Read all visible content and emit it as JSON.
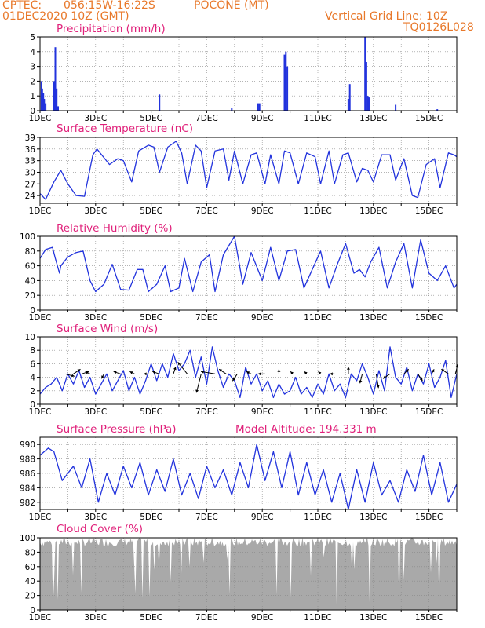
{
  "header": {
    "source": "CPTEC:",
    "location_coords": "056:15W-16:22S",
    "station": "POCONE (MT)",
    "init_time": "01DEC2020 10Z (GMT)",
    "grid_note": "Vertical Grid Line: 10Z",
    "model_code": "TQ0126L028"
  },
  "colors": {
    "header": "#e8782a",
    "title": "#e0207a",
    "series": "#2233dd",
    "cloud": "#a9a9a9",
    "grid": "#888888"
  },
  "x_axis": {
    "tick_labels": [
      "1DEC",
      "3DEC",
      "5DEC",
      "7DEC",
      "9DEC",
      "11DEC",
      "13DEC",
      "15DEC"
    ],
    "start_day": 1,
    "end_day": 16
  },
  "chart_data": [
    {
      "type": "bar",
      "title": "Precipitation (mm/h)",
      "ylim": [
        0,
        5
      ],
      "y_ticks": [
        "0",
        "1",
        "2",
        "3",
        "4",
        "5"
      ],
      "series": [
        {
          "x": [
            1.05,
            1.08,
            1.12,
            1.15,
            1.2,
            1.5,
            1.55,
            1.6,
            1.65,
            5.3,
            7.9,
            8.85,
            8.9,
            9.8,
            9.85,
            9.9,
            12.1,
            12.15,
            12.7,
            12.75,
            12.8,
            12.85,
            13.8,
            15.3
          ],
          "values": [
            2.0,
            1.5,
            1.2,
            0.8,
            0.5,
            2.0,
            4.3,
            1.5,
            0.3,
            1.1,
            0.2,
            0.5,
            0.5,
            3.8,
            4.0,
            3.0,
            0.8,
            1.8,
            5.0,
            3.3,
            1.0,
            0.9,
            0.4,
            0.1
          ]
        }
      ]
    },
    {
      "type": "line",
      "title": "Surface Temperature (nC)",
      "ylim": [
        22,
        39
      ],
      "y_ticks": [
        "24",
        "27",
        "30",
        "33",
        "36",
        "39"
      ],
      "series": [
        {
          "x": [
            1.0,
            1.2,
            1.5,
            1.75,
            2.0,
            2.3,
            2.6,
            2.9,
            3.05,
            3.5,
            3.8,
            4.0,
            4.3,
            4.55,
            4.9,
            5.1,
            5.3,
            5.6,
            5.9,
            6.1,
            6.3,
            6.6,
            6.8,
            7.0,
            7.3,
            7.6,
            7.8,
            8.0,
            8.3,
            8.6,
            8.8,
            9.1,
            9.3,
            9.6,
            9.8,
            10.0,
            10.3,
            10.6,
            10.9,
            11.1,
            11.4,
            11.6,
            11.9,
            12.1,
            12.4,
            12.6,
            12.8,
            13.0,
            13.3,
            13.6,
            13.8,
            14.1,
            14.4,
            14.6,
            14.9,
            15.2,
            15.4,
            15.7,
            15.9,
            16.0
          ],
          "values": [
            24.5,
            23.0,
            27.5,
            30.5,
            27.0,
            24.0,
            23.8,
            34.5,
            36.0,
            32.0,
            33.5,
            33.0,
            27.5,
            35.5,
            37.0,
            36.5,
            30.0,
            36.5,
            38.0,
            35.0,
            27.0,
            37.0,
            35.5,
            26.0,
            35.5,
            36.0,
            28.0,
            35.5,
            27.0,
            34.5,
            35.0,
            27.0,
            34.5,
            27.0,
            35.5,
            35.0,
            27.0,
            35.0,
            34.0,
            27.0,
            35.5,
            27.0,
            34.5,
            35.0,
            27.5,
            31.0,
            30.5,
            27.5,
            34.5,
            34.5,
            28.0,
            33.5,
            24.0,
            23.5,
            32.0,
            33.5,
            26.0,
            35.0,
            34.5,
            34.0
          ]
        }
      ]
    },
    {
      "type": "line",
      "title": "Relative Humidity (%)",
      "ylim": [
        0,
        100
      ],
      "y_ticks": [
        "0",
        "20",
        "40",
        "60",
        "80",
        "100"
      ],
      "series": [
        {
          "x": [
            1.0,
            1.2,
            1.45,
            1.55,
            1.7,
            1.75,
            2.0,
            2.3,
            2.55,
            2.8,
            3.0,
            3.3,
            3.6,
            3.9,
            4.2,
            4.5,
            4.7,
            4.9,
            5.2,
            5.5,
            5.7,
            6.0,
            6.2,
            6.5,
            6.8,
            7.1,
            7.3,
            7.6,
            8.0,
            8.3,
            8.6,
            9.0,
            9.3,
            9.6,
            9.9,
            10.2,
            10.5,
            10.8,
            11.1,
            11.4,
            11.7,
            12.0,
            12.3,
            12.5,
            12.7,
            12.9,
            13.2,
            13.5,
            13.8,
            14.1,
            14.4,
            14.7,
            15.0,
            15.3,
            15.6,
            15.9,
            16.0
          ],
          "values": [
            70.0,
            82.0,
            85.0,
            70.0,
            50.0,
            60.0,
            72.0,
            78.0,
            80.0,
            40.0,
            25.0,
            35.0,
            62.0,
            28.0,
            27.0,
            55.0,
            55.0,
            25.0,
            35.0,
            60.0,
            25.0,
            30.0,
            70.0,
            25.0,
            65.0,
            75.0,
            25.0,
            75.0,
            100.0,
            35.0,
            78.0,
            40.0,
            85.0,
            40.0,
            80.0,
            82.0,
            30.0,
            55.0,
            80.0,
            30.0,
            62.0,
            90.0,
            50.0,
            55.0,
            45.0,
            65.0,
            85.0,
            30.0,
            65.0,
            90.0,
            30.0,
            95.0,
            50.0,
            40.0,
            60.0,
            30.0,
            35.0
          ]
        }
      ]
    },
    {
      "type": "line",
      "title": "Surface Wind (m/s)",
      "ylim": [
        0,
        10
      ],
      "y_ticks": [
        "0",
        "2",
        "4",
        "6",
        "8",
        "10"
      ],
      "series": [
        {
          "x": [
            1.0,
            1.2,
            1.4,
            1.6,
            1.8,
            2.0,
            2.2,
            2.4,
            2.6,
            2.8,
            3.0,
            3.2,
            3.4,
            3.6,
            3.8,
            4.0,
            4.2,
            4.4,
            4.6,
            4.8,
            5.0,
            5.2,
            5.4,
            5.6,
            5.8,
            6.0,
            6.2,
            6.4,
            6.6,
            6.8,
            7.0,
            7.2,
            7.4,
            7.6,
            7.8,
            8.0,
            8.2,
            8.4,
            8.6,
            8.8,
            9.0,
            9.2,
            9.4,
            9.6,
            9.8,
            10.0,
            10.2,
            10.4,
            10.6,
            10.8,
            11.0,
            11.2,
            11.4,
            11.6,
            11.8,
            12.0,
            12.2,
            12.4,
            12.6,
            12.8,
            13.0,
            13.2,
            13.4,
            13.6,
            13.8,
            14.0,
            14.2,
            14.4,
            14.6,
            14.8,
            15.0,
            15.2,
            15.4,
            15.6,
            15.8,
            16.0
          ],
          "values": [
            1.5,
            2.5,
            3.0,
            4.0,
            2.0,
            4.5,
            3.0,
            5.0,
            2.5,
            4.0,
            1.5,
            3.0,
            4.5,
            2.0,
            3.5,
            5.0,
            2.0,
            4.0,
            1.5,
            3.5,
            6.0,
            3.5,
            6.0,
            4.0,
            7.5,
            5.0,
            6.0,
            8.0,
            4.0,
            7.0,
            3.0,
            8.5,
            5.0,
            2.5,
            4.5,
            3.5,
            1.0,
            5.5,
            3.0,
            4.5,
            2.0,
            3.5,
            1.0,
            3.0,
            1.5,
            2.0,
            4.0,
            1.5,
            2.5,
            1.0,
            3.0,
            1.5,
            4.5,
            2.0,
            3.0,
            1.0,
            4.5,
            3.5,
            6.0,
            4.0,
            1.5,
            5.0,
            2.0,
            8.5,
            4.0,
            3.0,
            5.5,
            2.0,
            4.5,
            3.0,
            6.0,
            2.5,
            4.0,
            6.5,
            1.0,
            4.5
          ]
        }
      ],
      "arrows": [
        {
          "x": 1.9,
          "u": 0.4,
          "v": -0.1
        },
        {
          "x": 2.2,
          "u": 0.3,
          "v": 0.2
        },
        {
          "x": 2.5,
          "u": 0.3,
          "v": 0.1
        },
        {
          "x": 2.8,
          "u": -0.2,
          "v": 0.1
        },
        {
          "x": 3.3,
          "u": -0.1,
          "v": -0.2
        },
        {
          "x": 3.9,
          "u": -0.3,
          "v": 0.1
        },
        {
          "x": 4.4,
          "u": -0.2,
          "v": 0.1
        },
        {
          "x": 4.9,
          "u": -0.2,
          "v": 0.0
        },
        {
          "x": 5.3,
          "u": -0.3,
          "v": 0.1
        },
        {
          "x": 5.8,
          "u": 0.1,
          "v": 0.3
        },
        {
          "x": 6.3,
          "u": -0.4,
          "v": 0.5
        },
        {
          "x": 6.8,
          "u": -0.2,
          "v": -0.8
        },
        {
          "x": 7.3,
          "u": -0.6,
          "v": 0.1
        },
        {
          "x": 7.7,
          "u": -0.3,
          "v": 0.2
        },
        {
          "x": 8.1,
          "u": -0.2,
          "v": -0.3
        },
        {
          "x": 8.6,
          "u": -0.2,
          "v": 0.1
        },
        {
          "x": 9.1,
          "u": -0.3,
          "v": 0.0
        },
        {
          "x": 9.6,
          "u": 0.0,
          "v": 0.2
        },
        {
          "x": 10.1,
          "u": -0.1,
          "v": 0.1
        },
        {
          "x": 10.6,
          "u": -0.1,
          "v": 0.1
        },
        {
          "x": 11.1,
          "u": -0.1,
          "v": 0.1
        },
        {
          "x": 11.6,
          "u": -0.2,
          "v": 0.0
        },
        {
          "x": 12.1,
          "u": 0.0,
          "v": 0.3
        },
        {
          "x": 12.6,
          "u": -0.1,
          "v": -0.4
        },
        {
          "x": 13.1,
          "u": 0.1,
          "v": -0.6
        },
        {
          "x": 13.6,
          "u": -0.3,
          "v": -0.2
        },
        {
          "x": 14.1,
          "u": 0.2,
          "v": 0.2
        },
        {
          "x": 14.6,
          "u": 0.2,
          "v": -0.3
        },
        {
          "x": 15.1,
          "u": 0.1,
          "v": 0.2
        },
        {
          "x": 15.7,
          "u": -0.3,
          "v": 0.2
        },
        {
          "x": 15.95,
          "u": 0.1,
          "v": 0.4
        }
      ]
    },
    {
      "type": "line",
      "title": "Surface Pressure (hPa)",
      "annotation": "Model Altitude: 194.331 m",
      "ylim": [
        981,
        991
      ],
      "y_ticks": [
        "982",
        "984",
        "986",
        "988",
        "990"
      ],
      "series": [
        {
          "x": [
            1.0,
            1.3,
            1.5,
            1.8,
            2.2,
            2.5,
            2.8,
            3.1,
            3.4,
            3.7,
            4.0,
            4.3,
            4.6,
            4.9,
            5.2,
            5.5,
            5.8,
            6.1,
            6.4,
            6.7,
            7.0,
            7.3,
            7.6,
            7.9,
            8.2,
            8.5,
            8.8,
            9.1,
            9.4,
            9.7,
            10.0,
            10.3,
            10.6,
            10.9,
            11.2,
            11.5,
            11.8,
            12.1,
            12.4,
            12.7,
            13.0,
            13.3,
            13.6,
            13.9,
            14.2,
            14.5,
            14.8,
            15.1,
            15.4,
            15.7,
            16.0
          ],
          "values": [
            988.5,
            989.5,
            989.0,
            985.0,
            987.0,
            984.0,
            988.0,
            982.0,
            986.0,
            983.0,
            987.0,
            984.0,
            987.5,
            983.0,
            986.5,
            983.5,
            988.0,
            983.0,
            986.0,
            982.5,
            987.0,
            984.0,
            986.5,
            983.0,
            987.5,
            984.0,
            990.0,
            985.0,
            989.0,
            984.0,
            989.0,
            983.0,
            987.5,
            983.0,
            986.5,
            982.0,
            986.0,
            981.0,
            986.5,
            982.0,
            987.5,
            983.0,
            985.0,
            982.0,
            986.5,
            983.5,
            988.5,
            983.0,
            987.5,
            982.0,
            984.5
          ]
        }
      ]
    },
    {
      "type": "bar",
      "title": "Cloud Cover (%)",
      "ylim": [
        0,
        100
      ],
      "y_ticks": [
        "0",
        "20",
        "40",
        "60",
        "80",
        "100"
      ]
    }
  ]
}
